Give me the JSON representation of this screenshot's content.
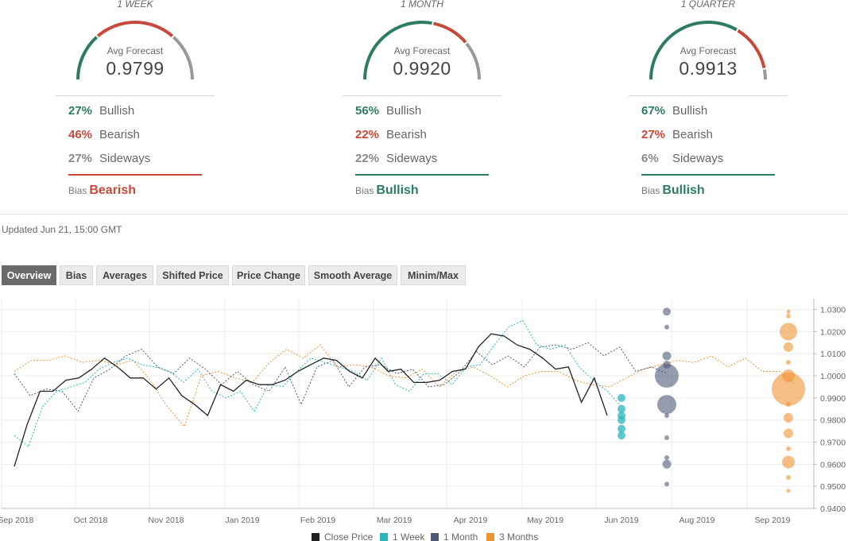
{
  "forecasts": [
    {
      "period": "1 WEEK",
      "avg_label": "Avg Forecast",
      "avg_value": "0.9799",
      "bullish_pct": "27%",
      "bullish_label": "Bullish",
      "bearish_pct": "46%",
      "bearish_label": "Bearish",
      "sideways_pct": "27%",
      "sideways_label": "Sideways",
      "bias_label": "Bias",
      "bias_value": "Bearish",
      "bias_color": "#c7493a",
      "gauge": {
        "bullish": 0.27,
        "bearish": 0.46,
        "sideways": 0.27
      }
    },
    {
      "period": "1 MONTH",
      "avg_label": "Avg Forecast",
      "avg_value": "0.9920",
      "bullish_pct": "56%",
      "bullish_label": "Bullish",
      "bearish_pct": "22%",
      "bearish_label": "Bearish",
      "sideways_pct": "22%",
      "sideways_label": "Sideways",
      "bias_label": "Bias",
      "bias_value": "Bullish",
      "bias_color": "#2e7b64",
      "gauge": {
        "bullish": 0.56,
        "bearish": 0.22,
        "sideways": 0.22
      }
    },
    {
      "period": "1 QUARTER",
      "avg_label": "Avg Forecast",
      "avg_value": "0.9913",
      "bullish_pct": "67%",
      "bullish_label": "Bullish",
      "bearish_pct": "27%",
      "bearish_label": "Bearish",
      "sideways_pct": "6%",
      "sideways_label": "Sideways",
      "bias_label": "Bias",
      "bias_value": "Bullish",
      "bias_color": "#2e7b64",
      "gauge": {
        "bullish": 0.67,
        "bearish": 0.27,
        "sideways": 0.06
      }
    }
  ],
  "colors": {
    "bullish": "#2e7b64",
    "bearish": "#c7493a",
    "sideways": "#999999",
    "close": "#222222",
    "week": "#2bb5bf",
    "month": "#4d5a76",
    "quarter": "#ef9233"
  },
  "updated": "Updated Jun 21, 15:00 GMT",
  "tabs": [
    "Overview",
    "Bias",
    "Averages",
    "Shifted Price",
    "Price Change",
    "Smooth Average",
    "Minim/Max"
  ],
  "active_tab": "Overview",
  "chart_data": {
    "type": "line",
    "xlabels": [
      "Sep 2018",
      "Oct 2018",
      "Nov 2018",
      "Jan 2019",
      "Feb 2019",
      "Mar 2019",
      "Apr 2019",
      "May 2019",
      "Jun 2019",
      "Aug 2019",
      "Sep 2019"
    ],
    "yticks": [
      "1.0300",
      "1.0200",
      "1.0100",
      "1.0000",
      "0.9900",
      "0.9800",
      "0.9700",
      "0.9600",
      "0.9500",
      "0.9400"
    ],
    "ylim": [
      0.94,
      1.032
    ],
    "legend": [
      "Close Price",
      "1 Week",
      "1 Month",
      "3 Months"
    ],
    "close_price": [
      0.959,
      0.978,
      0.993,
      0.993,
      0.998,
      0.999,
      1.003,
      1.008,
      1.004,
      0.999,
      0.999,
      0.994,
      0.999,
      0.991,
      0.987,
      0.982,
      0.996,
      0.993,
      0.998,
      0.996,
      0.996,
      0.998,
      1.002,
      1.005,
      1.008,
      1.007,
      1.002,
      0.999,
      1.008,
      1.002,
      1.003,
      0.997,
      0.997,
      0.998,
      1.002,
      1.003,
      1.013,
      1.019,
      1.018,
      1.014,
      1.012,
      1.008,
      1.003,
      1.004,
      0.988,
      0.999,
      0.982
    ],
    "week_forecast": [
      0.973,
      0.968,
      0.986,
      0.993,
      0.995,
      0.997,
      1.003,
      1.006,
      1.008,
      1.005,
      1.004,
      1.002,
      0.997,
      1.003,
      0.993,
      0.99,
      0.993,
      0.984,
      0.996,
      0.995,
      1.002,
      1.008,
      1.006,
      1.004,
      1.002,
      0.998,
      1.008,
      0.996,
      0.993,
      1.001,
      1.001,
      0.996,
      1.004,
      1.005,
      1.014,
      1.022,
      1.025,
      1.014,
      1.012,
      1.014,
      1.004,
      0.998,
      0.993,
      0.986
    ],
    "month_forecast": [
      1.001,
      0.991,
      0.994,
      0.993,
      0.984,
      0.999,
      1.003,
      1.009,
      1.012,
      1.004,
      1.001,
      1.008,
      1.003,
      0.996,
      1.002,
      0.996,
      0.993,
      1.004,
      0.987,
      1.004,
      1.007,
      0.995,
      1.004,
      1.005,
      1.001,
      1.003,
      0.995,
      0.996,
      1.002,
      1.011,
      1.005,
      1.009,
      1.004,
      1.013,
      1.014,
      1.012,
      1.015,
      1.009,
      1.013,
      1.002,
      1.004,
      1.001
    ],
    "quarter_forecast": [
      1.002,
      1.007,
      1.007,
      1.009,
      1.006,
      1.007,
      1.005,
      1.007,
      0.998,
      0.986,
      0.977,
      1.0,
      1.002,
      0.999,
      0.997,
      1.006,
      1.012,
      1.008,
      1.014,
      1.004,
      1.005,
      1.004,
      1.0,
      0.999,
      1.003,
      0.995,
      1.002,
      1.004,
      1.0,
      0.995,
      1.0,
      1.002,
      1.002,
      0.998,
      0.996,
      0.995,
      0.999,
      1.003,
      1.005,
      1.007,
      1.006,
      1.009,
      1.004,
      1.008,
      1.002,
      1.002,
      0.996
    ],
    "week_dots": [
      0.99,
      0.985,
      0.982,
      0.976,
      0.973,
      0.98
    ],
    "month_dots": [
      {
        "v": 1.029,
        "r": 5
      },
      {
        "v": 1.022,
        "r": 3
      },
      {
        "v": 1.009,
        "r": 5.5
      },
      {
        "v": 1.005,
        "r": 5
      },
      {
        "v": 1.0,
        "r": 15
      },
      {
        "v": 0.987,
        "r": 12
      },
      {
        "v": 0.982,
        "r": 3
      },
      {
        "v": 0.972,
        "r": 3
      },
      {
        "v": 0.963,
        "r": 3
      },
      {
        "v": 0.96,
        "r": 5.5
      },
      {
        "v": 0.951,
        "r": 3
      }
    ],
    "quarter_dots": [
      {
        "v": 1.029,
        "r": 2.5
      },
      {
        "v": 1.027,
        "r": 3
      },
      {
        "v": 1.02,
        "r": 11
      },
      {
        "v": 1.013,
        "r": 6
      },
      {
        "v": 1.006,
        "r": 3
      },
      {
        "v": 1.0,
        "r": 8
      },
      {
        "v": 0.994,
        "r": 21
      },
      {
        "v": 0.987,
        "r": 3
      },
      {
        "v": 0.981,
        "r": 6
      },
      {
        "v": 0.974,
        "r": 6
      },
      {
        "v": 0.967,
        "r": 3
      },
      {
        "v": 0.961,
        "r": 8
      },
      {
        "v": 0.954,
        "r": 3
      },
      {
        "v": 0.948,
        "r": 2.5
      }
    ]
  }
}
